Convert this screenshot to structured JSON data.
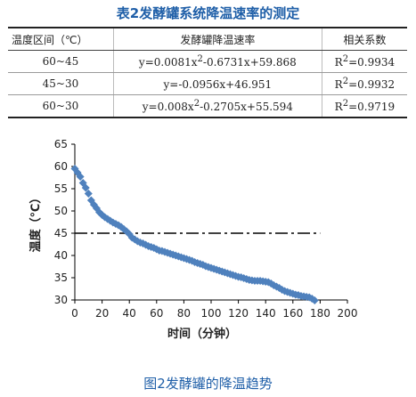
{
  "table_title": "表2发酵罐系统降温速率的测定",
  "table": {
    "headers": [
      "温度区间（℃）",
      "发酵罐降温速率",
      "相关系数"
    ],
    "rows": [
      {
        "range": "60~45",
        "eq_main": "y=0.0081x",
        "eq_sup": "2",
        "eq_rest": "-0.6731x+59.868",
        "r2_main": "R",
        "r2_sup": "2",
        "r2_rest": "=0.9934"
      },
      {
        "range": "45~30",
        "eq_main": "y=-0.0956x+46.951",
        "eq_sup": "",
        "eq_rest": "",
        "r2_main": "R",
        "r2_sup": "2",
        "r2_rest": "=0.9932"
      },
      {
        "range": "60~30",
        "eq_main": "y=0.008x",
        "eq_sup": "2",
        "eq_rest": "-0.2705x+55.594",
        "r2_main": "R",
        "r2_sup": "2",
        "r2_rest": "=0.9719"
      }
    ]
  },
  "figure_caption": "图2发酵罐的降温趋势",
  "chart_data": {
    "type": "scatter",
    "title": "",
    "xlabel": "时间（分钟）",
    "ylabel": "温度（℃）",
    "xlim": [
      0,
      200
    ],
    "ylim": [
      30,
      65
    ],
    "xticks": [
      "0",
      "20",
      "40",
      "60",
      "80",
      "100",
      "120",
      "140",
      "160",
      "180",
      "200"
    ],
    "yticks": [
      "30",
      "35",
      "40",
      "45",
      "50",
      "55",
      "60",
      "65"
    ],
    "grid": false,
    "legend": "none",
    "marker": "diamond",
    "marker_color": "#4f81bd",
    "reference_line": {
      "y": 45,
      "style": "dash-dot",
      "x_range": [
        0,
        180
      ],
      "color": "#000000"
    },
    "series": [
      {
        "x": [
          0,
          2,
          4,
          6,
          8,
          10,
          12,
          14,
          16,
          18,
          20,
          22,
          24,
          26,
          28,
          30,
          32,
          34,
          36,
          38,
          40,
          42,
          44,
          46,
          48,
          50,
          52,
          54,
          56,
          58,
          60,
          62,
          64,
          66,
          68,
          70,
          72,
          74,
          76,
          78,
          80,
          82,
          84,
          86,
          88,
          90,
          92,
          94,
          96,
          98,
          100,
          102,
          104,
          106,
          108,
          110,
          112,
          114,
          116,
          118,
          120,
          122,
          124,
          126,
          128,
          130,
          132,
          134,
          136,
          138,
          140,
          142,
          144,
          146,
          148,
          150,
          152,
          154,
          156,
          158,
          160,
          162,
          164,
          166,
          168,
          170,
          172,
          174,
          176
        ],
        "y": [
          59.5,
          58.6,
          57.7,
          56.3,
          55.2,
          53.9,
          52.4,
          51.4,
          50.6,
          49.7,
          49.1,
          48.6,
          48.2,
          47.8,
          47.4,
          47.1,
          46.8,
          46.4,
          45.9,
          45.4,
          44.8,
          44.0,
          43.6,
          43.2,
          42.9,
          42.7,
          42.4,
          42.1,
          41.9,
          41.7,
          41.4,
          41.1,
          41.0,
          40.8,
          40.6,
          40.4,
          40.2,
          40.0,
          39.8,
          39.6,
          39.4,
          39.2,
          39.0,
          38.8,
          38.5,
          38.3,
          38.1,
          37.9,
          37.6,
          37.4,
          37.2,
          37.0,
          36.8,
          36.6,
          36.4,
          36.2,
          36.0,
          35.8,
          35.6,
          35.4,
          35.2,
          35.1,
          34.9,
          34.7,
          34.5,
          34.4,
          34.3,
          34.3,
          34.3,
          34.2,
          34.1,
          34.0,
          33.7,
          33.3,
          33.0,
          32.7,
          32.3,
          32.0,
          31.8,
          31.6,
          31.4,
          31.2,
          31.1,
          30.9,
          30.8,
          30.7,
          30.6,
          30.3,
          29.9
        ]
      }
    ]
  }
}
